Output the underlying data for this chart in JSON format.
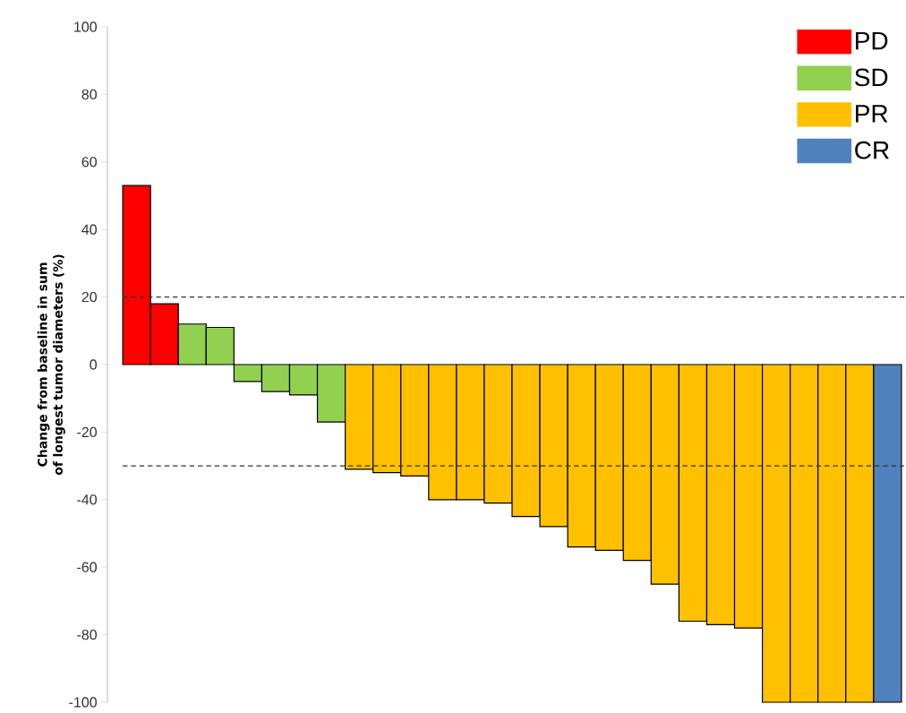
{
  "chart_data": {
    "type": "bar",
    "ylabel": "Change from baseline in sum of longest tumor diameters (%)",
    "categories": [
      null,
      null,
      null,
      null,
      null,
      null,
      null,
      null,
      null,
      null,
      null,
      null,
      null,
      null,
      null,
      null,
      null,
      null,
      null,
      null,
      null,
      null,
      null,
      null,
      null,
      null,
      null,
      null
    ],
    "series": [
      {
        "name": "PD",
        "color": "#ff0000",
        "values": [
          53,
          18,
          null,
          null,
          null,
          null,
          null,
          null,
          null,
          null,
          null,
          null,
          null,
          null,
          null,
          null,
          null,
          null,
          null,
          null,
          null,
          null,
          null,
          null,
          null,
          null,
          null,
          null
        ]
      },
      {
        "name": "SD",
        "color": "#92d050",
        "values": [
          null,
          null,
          12,
          11,
          -5,
          -8,
          -9,
          -17,
          null,
          null,
          null,
          null,
          null,
          null,
          null,
          null,
          null,
          null,
          null,
          null,
          null,
          null,
          null,
          null,
          null,
          null,
          null,
          null
        ]
      },
      {
        "name": "PR",
        "color": "#ffc000",
        "values": [
          null,
          null,
          null,
          null,
          null,
          null,
          null,
          null,
          -31,
          -32,
          -33,
          -40,
          -40,
          -41,
          -45,
          -48,
          -54,
          -55,
          -58,
          -65,
          -76,
          -77,
          -78,
          -100,
          -100,
          -100,
          -100,
          null
        ]
      },
      {
        "name": "CR",
        "color": "#4f81bd",
        "values": [
          null,
          null,
          null,
          null,
          null,
          null,
          null,
          null,
          null,
          null,
          null,
          null,
          null,
          null,
          null,
          null,
          null,
          null,
          null,
          null,
          null,
          null,
          null,
          null,
          null,
          null,
          null,
          -100
        ]
      }
    ],
    "ylim": [
      -100,
      100
    ],
    "yticks": [
      -100,
      -80,
      -60,
      -40,
      -20,
      0,
      20,
      40,
      60,
      80,
      100
    ],
    "ref_lines": [
      {
        "axis": "y",
        "value": 20,
        "line_style": "dashed"
      },
      {
        "axis": "y",
        "value": -30,
        "line_style": "dashed"
      }
    ],
    "grid": false,
    "legend": "top right"
  }
}
